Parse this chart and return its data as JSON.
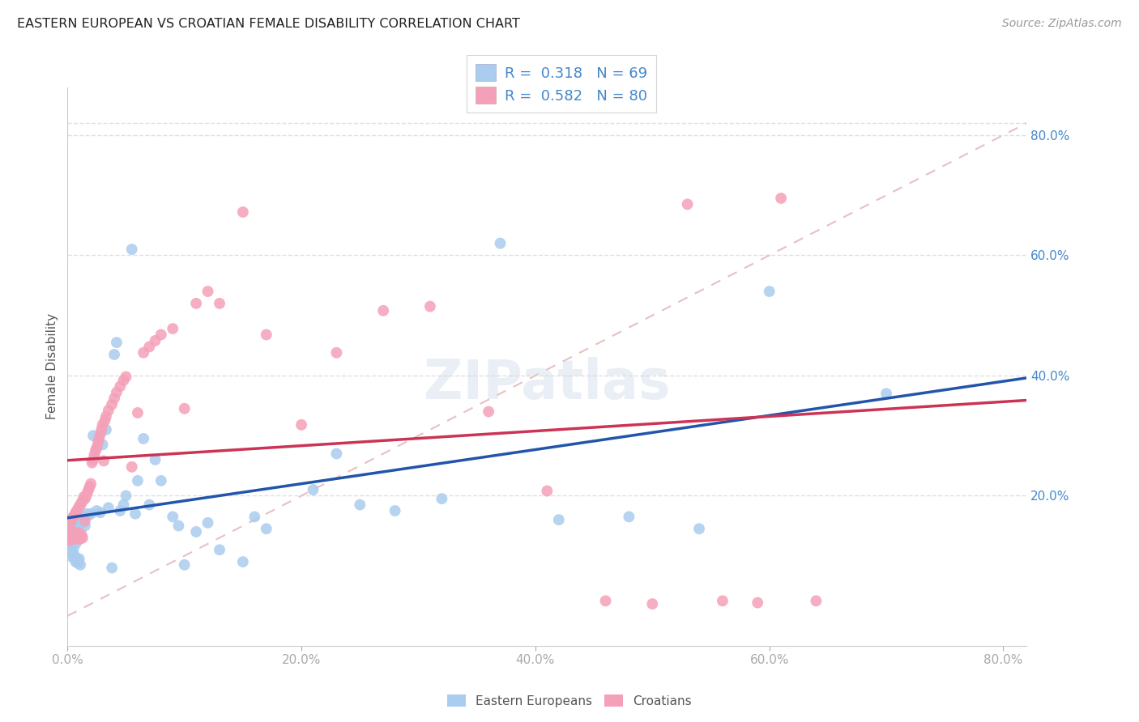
{
  "title": "EASTERN EUROPEAN VS CROATIAN FEMALE DISABILITY CORRELATION CHART",
  "source": "Source: ZipAtlas.com",
  "ylabel": "Female Disability",
  "xlim": [
    0.0,
    0.82
  ],
  "ylim": [
    -0.05,
    0.88
  ],
  "xtick_vals": [
    0.0,
    0.2,
    0.4,
    0.6,
    0.8
  ],
  "xtick_labels": [
    "0.0%",
    "20.0%",
    "40.0%",
    "60.0%",
    "80.0%"
  ],
  "ytick_vals": [
    0.2,
    0.4,
    0.6,
    0.8
  ],
  "ytick_labels": [
    "20.0%",
    "40.0%",
    "60.0%",
    "80.0%"
  ],
  "blue_line_color": "#2255aa",
  "pink_line_color": "#cc3355",
  "blue_scatter_color": "#aaccee",
  "pink_scatter_color": "#f4a0b8",
  "diagonal_color": "#e8c0c0",
  "grid_color": "#e0e0e0",
  "right_axis_color": "#4488cc",
  "legend_R_N_color": "#4488cc",
  "ee_R": "0.318",
  "ee_N": "69",
  "cr_R": "0.582",
  "cr_N": "80",
  "ee_x": [
    0.001,
    0.001,
    0.002,
    0.002,
    0.003,
    0.003,
    0.004,
    0.004,
    0.005,
    0.005,
    0.006,
    0.006,
    0.007,
    0.007,
    0.007,
    0.008,
    0.008,
    0.009,
    0.009,
    0.01,
    0.01,
    0.011,
    0.011,
    0.012,
    0.013,
    0.014,
    0.015,
    0.016,
    0.018,
    0.02,
    0.022,
    0.025,
    0.028,
    0.03,
    0.033,
    0.035,
    0.038,
    0.04,
    0.042,
    0.045,
    0.048,
    0.05,
    0.055,
    0.058,
    0.06,
    0.065,
    0.07,
    0.075,
    0.08,
    0.09,
    0.095,
    0.1,
    0.11,
    0.12,
    0.13,
    0.15,
    0.16,
    0.17,
    0.21,
    0.23,
    0.25,
    0.28,
    0.32,
    0.37,
    0.42,
    0.48,
    0.54,
    0.6,
    0.7
  ],
  "ee_y": [
    0.14,
    0.115,
    0.13,
    0.108,
    0.145,
    0.105,
    0.138,
    0.098,
    0.15,
    0.11,
    0.155,
    0.1,
    0.148,
    0.12,
    0.09,
    0.158,
    0.095,
    0.16,
    0.088,
    0.165,
    0.095,
    0.155,
    0.085,
    0.16,
    0.155,
    0.165,
    0.15,
    0.17,
    0.168,
    0.17,
    0.3,
    0.175,
    0.172,
    0.285,
    0.31,
    0.18,
    0.08,
    0.435,
    0.455,
    0.175,
    0.185,
    0.2,
    0.61,
    0.17,
    0.225,
    0.295,
    0.185,
    0.26,
    0.225,
    0.165,
    0.15,
    0.085,
    0.14,
    0.155,
    0.11,
    0.09,
    0.165,
    0.145,
    0.21,
    0.27,
    0.185,
    0.175,
    0.195,
    0.62,
    0.16,
    0.165,
    0.145,
    0.54,
    0.37
  ],
  "cr_x": [
    0.001,
    0.001,
    0.002,
    0.002,
    0.003,
    0.003,
    0.004,
    0.004,
    0.005,
    0.005,
    0.006,
    0.006,
    0.007,
    0.007,
    0.008,
    0.008,
    0.009,
    0.009,
    0.01,
    0.01,
    0.011,
    0.011,
    0.012,
    0.012,
    0.013,
    0.013,
    0.014,
    0.015,
    0.015,
    0.016,
    0.017,
    0.018,
    0.019,
    0.02,
    0.021,
    0.022,
    0.023,
    0.024,
    0.025,
    0.026,
    0.027,
    0.028,
    0.029,
    0.03,
    0.031,
    0.032,
    0.033,
    0.035,
    0.038,
    0.04,
    0.042,
    0.045,
    0.048,
    0.05,
    0.055,
    0.06,
    0.065,
    0.07,
    0.075,
    0.08,
    0.09,
    0.1,
    0.11,
    0.12,
    0.13,
    0.15,
    0.17,
    0.2,
    0.23,
    0.27,
    0.31,
    0.36,
    0.41,
    0.46,
    0.5,
    0.53,
    0.56,
    0.59,
    0.61,
    0.64
  ],
  "cr_y": [
    0.15,
    0.125,
    0.155,
    0.13,
    0.158,
    0.128,
    0.162,
    0.132,
    0.165,
    0.14,
    0.168,
    0.128,
    0.172,
    0.135,
    0.175,
    0.132,
    0.178,
    0.128,
    0.182,
    0.138,
    0.185,
    0.128,
    0.188,
    0.135,
    0.192,
    0.13,
    0.198,
    0.195,
    0.158,
    0.2,
    0.205,
    0.21,
    0.215,
    0.22,
    0.255,
    0.26,
    0.268,
    0.275,
    0.28,
    0.288,
    0.295,
    0.302,
    0.31,
    0.318,
    0.258,
    0.325,
    0.332,
    0.342,
    0.352,
    0.362,
    0.372,
    0.382,
    0.392,
    0.398,
    0.248,
    0.338,
    0.438,
    0.448,
    0.458,
    0.468,
    0.478,
    0.345,
    0.52,
    0.54,
    0.52,
    0.672,
    0.468,
    0.318,
    0.438,
    0.508,
    0.515,
    0.34,
    0.208,
    0.025,
    0.02,
    0.685,
    0.025,
    0.022,
    0.695,
    0.025
  ]
}
